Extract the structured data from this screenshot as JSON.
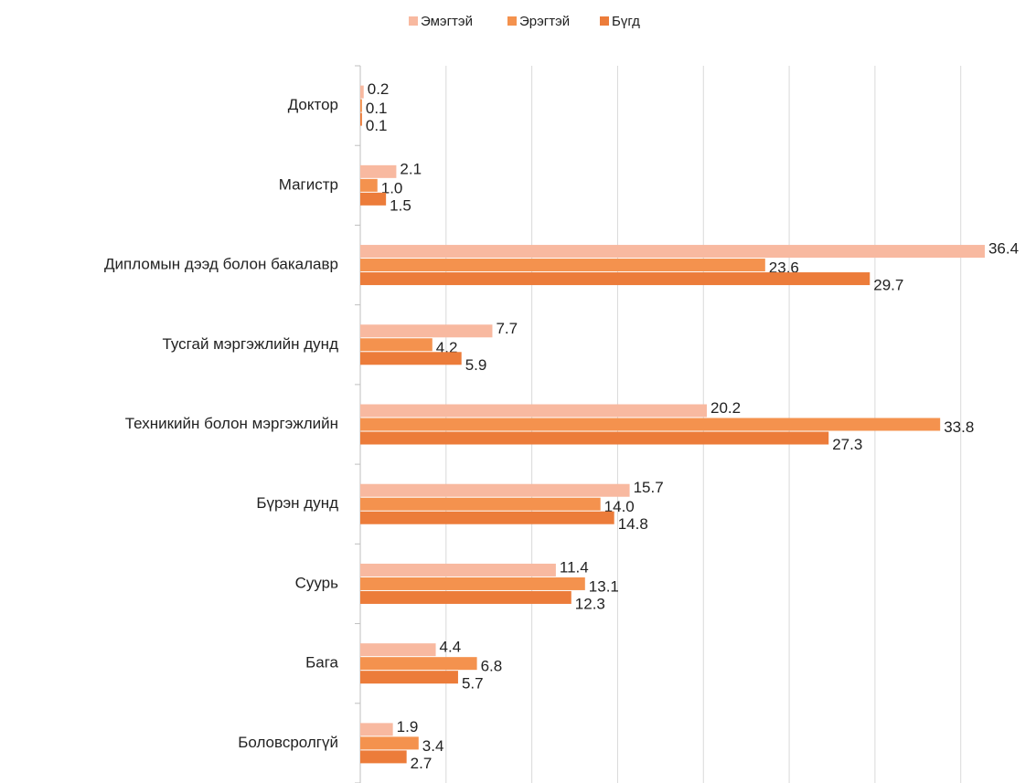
{
  "chart_data": {
    "type": "hbar",
    "categories": [
      "Доктор",
      "Магистр",
      "Дипломын дээд болон бакалавр",
      "Тусгай мэргэжлийн дунд",
      "Техникийн болон мэргэжлийн",
      "Бүрэн дунд",
      "Суурь",
      "Бага",
      "Боловсролгүй"
    ],
    "series": [
      {
        "name": "Эмэгтэй",
        "color": "#f8b9a0",
        "values": [
          0.2,
          2.1,
          36.4,
          7.7,
          20.2,
          15.7,
          11.4,
          4.4,
          1.9
        ],
        "value_labels": [
          "0.2",
          "2.1",
          "36.4",
          "7.7",
          "20.2",
          "15.7",
          "11.4",
          "4.4",
          "1.9"
        ]
      },
      {
        "name": "Эрэгтэй",
        "color": "#f4924e",
        "values": [
          0.1,
          1.0,
          23.6,
          4.2,
          33.8,
          14.0,
          13.1,
          6.8,
          3.4
        ],
        "value_labels": [
          "0.1",
          "1.0",
          "23.6",
          "4.2",
          "33.8",
          "14.0",
          "13.1",
          "6.8",
          "3.4"
        ]
      },
      {
        "name": "Бүгд",
        "color": "#ec7c3a",
        "values": [
          0.1,
          1.5,
          29.7,
          5.9,
          27.3,
          14.8,
          12.3,
          5.7,
          2.7
        ],
        "value_labels": [
          "0.1",
          "1.5",
          "29.7",
          "5.9",
          "27.3",
          "14.8",
          "12.3",
          "5.7",
          "2.7"
        ]
      }
    ],
    "xlim": [
      0,
      38
    ],
    "xticks": [
      0,
      5,
      10,
      15,
      20,
      25,
      30,
      35
    ],
    "grid": true,
    "legend": "top"
  }
}
